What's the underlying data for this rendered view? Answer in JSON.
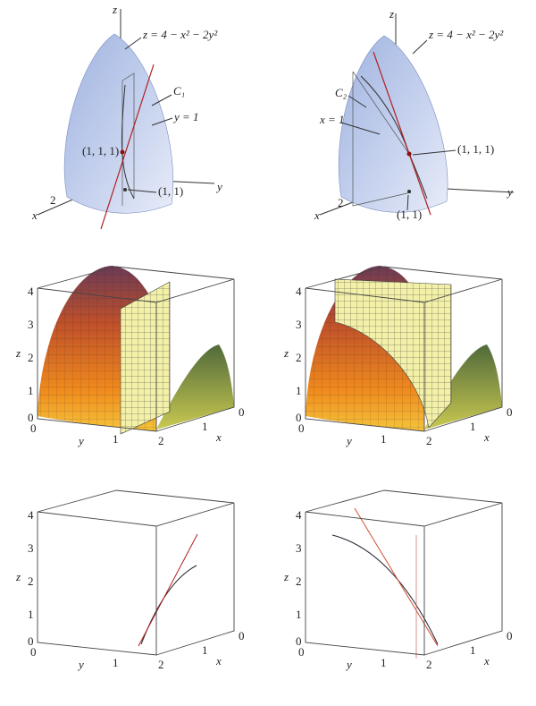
{
  "top_left": {
    "z_axis": "z",
    "y_axis": "y",
    "x_axis": "x",
    "x_tick": "2",
    "equation": "z = 4 − x² − 2y²",
    "curve": "C₁",
    "plane": "y = 1",
    "point": "(1, 1, 1)",
    "base_point": "(1, 1)"
  },
  "top_right": {
    "z_axis": "z",
    "y_axis": "y",
    "x_axis": "x",
    "x_tick": "2",
    "equation": "z = 4 − x² − 2y²",
    "curve": "C₂",
    "plane": "x = 1",
    "point": "(1, 1, 1)",
    "base_point": "(1, 1)"
  },
  "middle_left": {
    "z_ticks": [
      "4",
      "3",
      "2",
      "1",
      "0"
    ],
    "z_axis": "z",
    "y_ticks": [
      "0",
      "1"
    ],
    "y_axis": "y",
    "x_ticks": [
      "2",
      "1",
      "0"
    ],
    "x_axis": "x"
  },
  "middle_right": {
    "z_ticks": [
      "4",
      "3",
      "2",
      "1",
      "0"
    ],
    "z_axis": "z",
    "y_ticks": [
      "0",
      "1"
    ],
    "y_axis": "y",
    "x_ticks": [
      "2",
      "1",
      "0"
    ],
    "x_axis": "x"
  },
  "bottom_left": {
    "z_ticks": [
      "4",
      "3",
      "2",
      "1",
      "0"
    ],
    "z_axis": "z",
    "y_ticks": [
      "0",
      "1"
    ],
    "y_axis": "y",
    "x_ticks": [
      "2",
      "1",
      "0"
    ],
    "x_axis": "x"
  },
  "bottom_right": {
    "z_ticks": [
      "4",
      "3",
      "2",
      "1",
      "0"
    ],
    "z_axis": "z",
    "y_ticks": [
      "0",
      "1"
    ],
    "y_axis": "y",
    "x_ticks": [
      "2",
      "1",
      "0"
    ],
    "x_axis": "x"
  }
}
